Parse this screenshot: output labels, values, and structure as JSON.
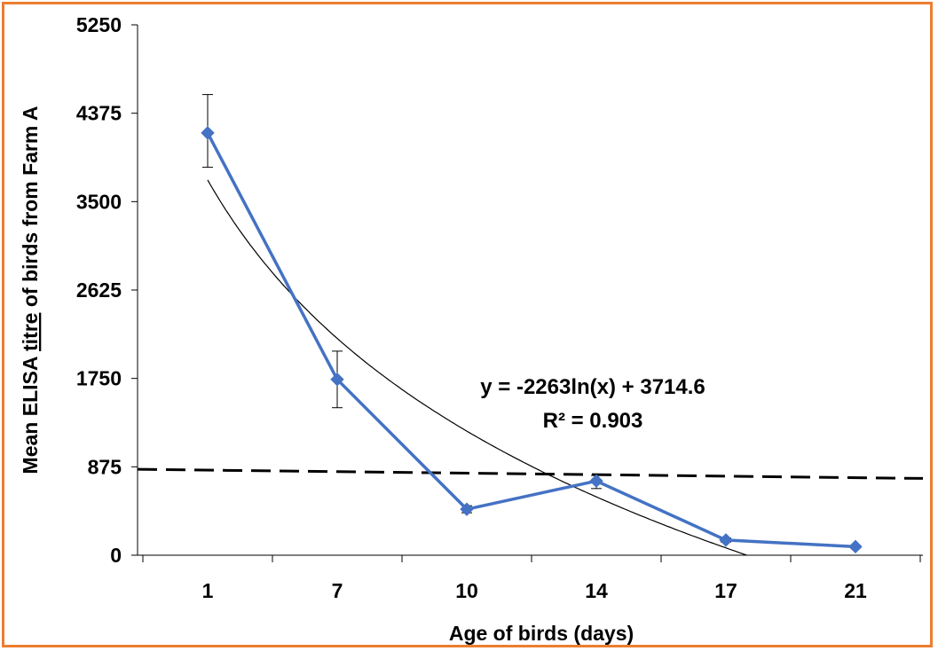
{
  "chart_data": {
    "type": "line",
    "categories": [
      "1",
      "7",
      "10",
      "14",
      "17",
      "21"
    ],
    "series": [
      {
        "values": [
          4180,
          1740,
          455,
          735,
          150,
          85
        ],
        "error_low": [
          3840,
          1460,
          420,
          660,
          130,
          70
        ],
        "error_high": [
          4560,
          2020,
          490,
          790,
          170,
          95
        ],
        "color": "#4472C4",
        "marker": "diamond"
      }
    ],
    "trendline": {
      "type": "logarithmic",
      "a": -2263,
      "b": 3714.6,
      "equation_label": "y = -2263ln(x) + 3714.6",
      "r2_label": "R² = 0.903",
      "color": "#000000"
    },
    "threshold_line": {
      "style": "dashed",
      "y_start": 850,
      "y_end": 760,
      "color": "#000000"
    },
    "xlabel": "Age of birds (days)",
    "ylabel_parts": [
      "Mean ELISA ",
      "titre",
      " of birds from Farm A"
    ],
    "yticks": [
      "0",
      "875",
      "1750",
      "2625",
      "3500",
      "4375",
      "5250"
    ],
    "ylim": [
      0,
      5250
    ],
    "grid": false,
    "legend": "none"
  },
  "frame_color": "#ED7D31"
}
